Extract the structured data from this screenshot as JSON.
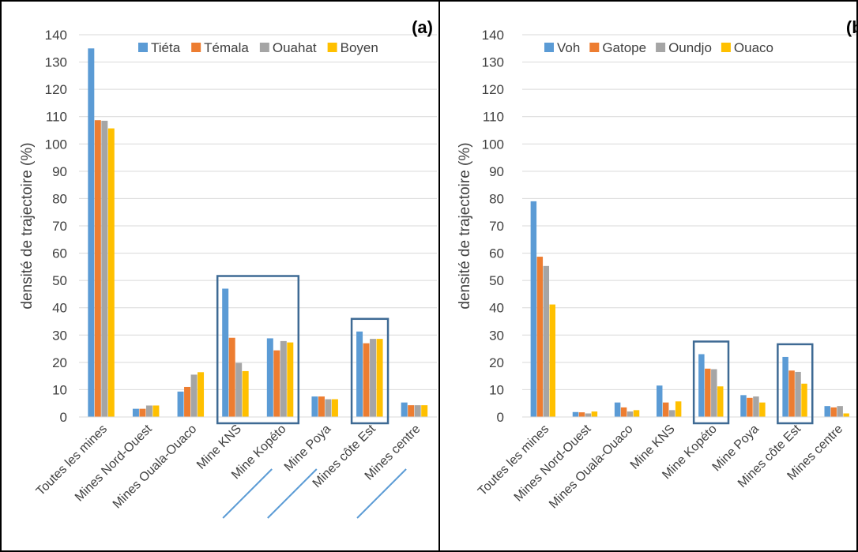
{
  "chart_data": [
    {
      "type": "bar",
      "panel_label": "(a)",
      "ylabel": "densité de trajectoire (%)",
      "ylim": [
        0,
        140
      ],
      "yticks": [
        0,
        10,
        20,
        30,
        40,
        50,
        60,
        70,
        80,
        90,
        100,
        110,
        120,
        130,
        140
      ],
      "grid": true,
      "legend_position": "top-right",
      "categories": [
        "Toutes les mines",
        "Mines Nord-Ouest",
        "Mines Ouala-Ouaco",
        "Mine KNS",
        "Mine Kopéto",
        "Mine Poya",
        "Mines côte Est",
        "Mines centre"
      ],
      "series": [
        {
          "name": "Tiéta",
          "color": "#5B9BD5",
          "values": [
            135,
            3,
            9.3,
            47,
            28.8,
            7.5,
            31.3,
            5.3
          ]
        },
        {
          "name": "Témala",
          "color": "#ED7D31",
          "values": [
            108.7,
            3,
            11,
            29,
            24.4,
            7.5,
            27,
            4.3
          ]
        },
        {
          "name": "Ouahat",
          "color": "#A5A5A5",
          "values": [
            108.5,
            4.2,
            15.5,
            19.8,
            27.8,
            6.5,
            28.6,
            4.3
          ]
        },
        {
          "name": "Boyen",
          "color": "#FFC000",
          "values": [
            105.7,
            4.2,
            16.4,
            16.8,
            27.3,
            6.5,
            28.6,
            4.3
          ]
        }
      ],
      "highlight_boxes": [
        [
          3,
          4
        ],
        [
          6,
          6
        ]
      ],
      "underlined_categories": [
        3,
        4,
        6
      ]
    },
    {
      "type": "bar",
      "panel_label": "(b)",
      "ylabel": "densité de trajectoire (%)",
      "ylim": [
        0,
        140
      ],
      "yticks": [
        0,
        10,
        20,
        30,
        40,
        50,
        60,
        70,
        80,
        90,
        100,
        110,
        120,
        130,
        140
      ],
      "grid": true,
      "legend_position": "top",
      "categories": [
        "Toutes les mines",
        "Mines Nord-Ouest",
        "Mines Ouala-Ouaco",
        "Mine KNS",
        "Mine Kopéto",
        "Mine Poya",
        "Mines côte Est",
        "Mines centre"
      ],
      "series": [
        {
          "name": "Voh",
          "color": "#5B9BD5",
          "values": [
            79,
            1.8,
            5.3,
            11.5,
            23,
            8,
            22,
            4
          ]
        },
        {
          "name": "Gatope",
          "color": "#ED7D31",
          "values": [
            58.7,
            1.7,
            3.5,
            5.3,
            17.7,
            7,
            17,
            3.5
          ]
        },
        {
          "name": "Oundjo",
          "color": "#A5A5A5",
          "values": [
            55.3,
            1.3,
            2,
            2.5,
            17.5,
            7.5,
            16.5,
            4
          ]
        },
        {
          "name": "Ouaco",
          "color": "#FFC000",
          "values": [
            41.2,
            2,
            2.5,
            5.7,
            11.2,
            5.3,
            12.2,
            1.3
          ]
        }
      ],
      "highlight_boxes": [
        [
          4,
          4
        ],
        [
          6,
          6
        ]
      ],
      "underlined_categories": []
    }
  ]
}
